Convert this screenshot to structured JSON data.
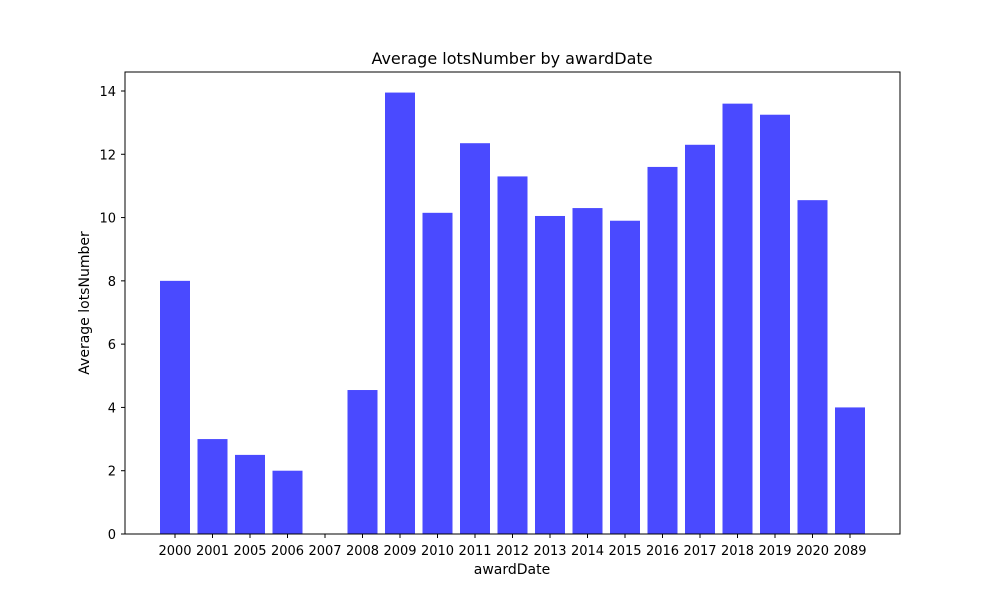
{
  "chart_data": {
    "type": "bar",
    "title": "Average lotsNumber by awardDate",
    "xlabel": "awardDate",
    "ylabel": "Average lotsNumber",
    "categories": [
      "2000",
      "2001",
      "2005",
      "2006",
      "2007",
      "2008",
      "2009",
      "2010",
      "2011",
      "2012",
      "2013",
      "2014",
      "2015",
      "2016",
      "2017",
      "2018",
      "2019",
      "2020",
      "2089"
    ],
    "values": [
      8.0,
      3.0,
      2.5,
      2.0,
      0.0,
      4.55,
      13.95,
      10.15,
      12.35,
      11.3,
      10.05,
      10.3,
      9.9,
      11.6,
      12.3,
      13.6,
      13.25,
      10.55,
      4.0
    ],
    "ylim": [
      0,
      14.6
    ],
    "yticks": [
      0,
      2,
      4,
      6,
      8,
      10,
      12,
      14
    ],
    "grid": false,
    "bar_color": "#4a4aff"
  }
}
